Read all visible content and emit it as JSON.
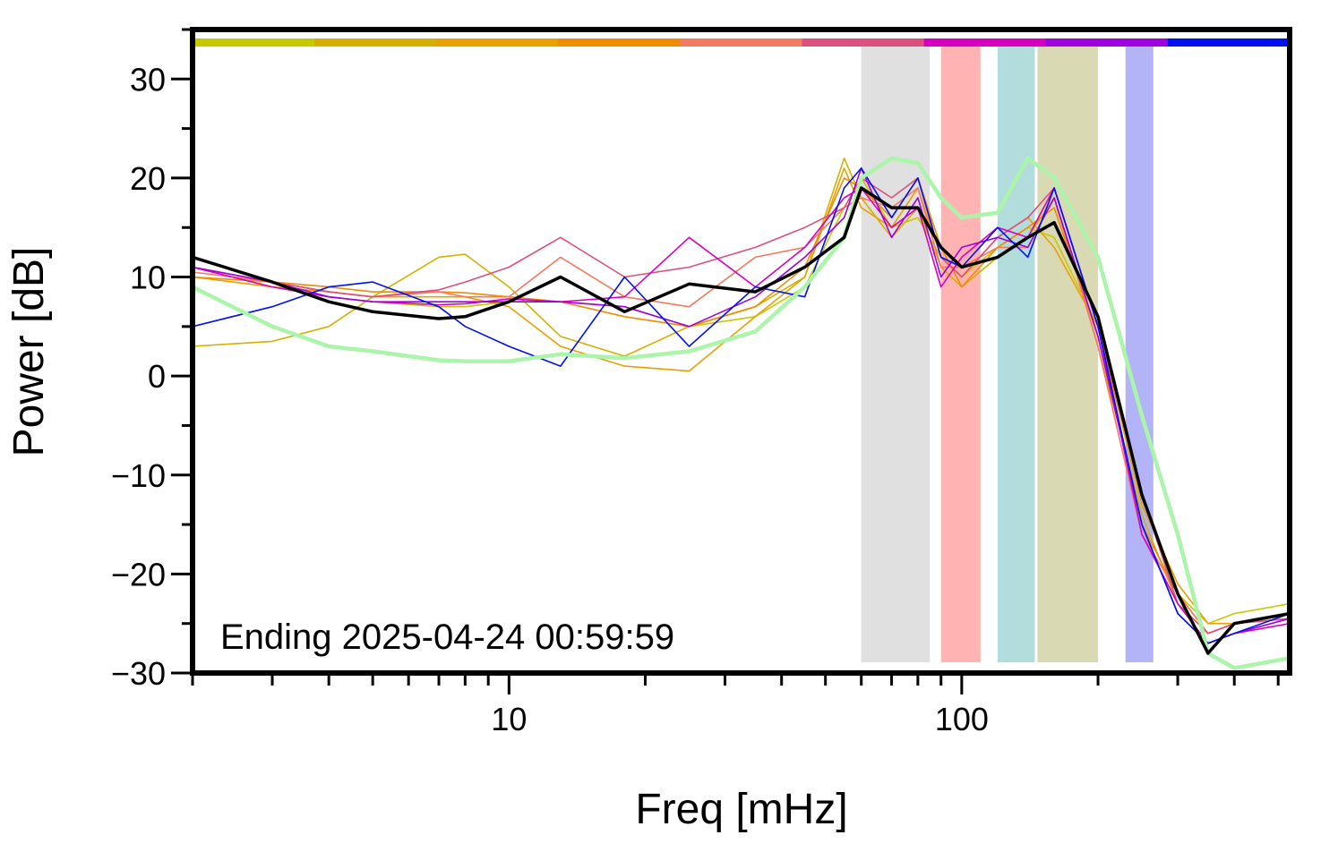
{
  "chart_data": {
    "type": "line",
    "xlabel": "Freq [mHz]",
    "ylabel": "Power [dB]",
    "annotation": "Ending 2025-04-24 00:59:59",
    "xscale": "log",
    "xlim": [
      2,
      530
    ],
    "ylim": [
      -30,
      35
    ],
    "xticks": [
      10,
      100
    ],
    "xminorticks": [
      2,
      3,
      4,
      5,
      6,
      7,
      8,
      9,
      20,
      30,
      40,
      50,
      60,
      70,
      80,
      90,
      200,
      300,
      400,
      500
    ],
    "yticks": [
      {
        "value": -30,
        "label": "−30"
      },
      {
        "value": -20,
        "label": "−20"
      },
      {
        "value": -10,
        "label": "−10"
      },
      0,
      10,
      20,
      30
    ],
    "yminorticks": [
      -25,
      -15,
      -5,
      5,
      15,
      25,
      35
    ],
    "bands": [
      {
        "x": [
          60,
          85
        ],
        "color": "#e0e0e0"
      },
      {
        "x": [
          90,
          110
        ],
        "color": "#ffb3b3"
      },
      {
        "x": [
          120,
          145
        ],
        "color": "#b3dcdc"
      },
      {
        "x": [
          147,
          200
        ],
        "color": "#d9d9b3"
      },
      {
        "x": [
          230,
          265
        ],
        "color": "#b3b3f8"
      }
    ],
    "x": [
      2,
      3,
      4,
      5,
      7,
      8,
      10,
      13,
      18,
      25,
      35,
      45,
      55,
      60,
      70,
      80,
      90,
      100,
      120,
      140,
      160,
      200,
      250,
      300,
      350,
      400,
      530
    ],
    "series": [
      {
        "color": "#c8c800",
        "values": [
          11,
          9,
          8,
          7.5,
          7,
          7,
          7.5,
          7.5,
          7,
          5,
          6,
          9,
          17,
          20,
          15,
          16,
          12,
          10,
          13,
          15,
          14,
          5,
          -12,
          -22,
          -25,
          -24,
          -23
        ]
      },
      {
        "color": "#d4b000",
        "values": [
          3,
          3.5,
          5,
          8,
          12,
          12.3,
          9,
          4,
          2,
          5,
          7,
          10,
          22,
          18,
          14,
          17,
          11,
          9,
          12,
          14,
          18,
          3,
          -14,
          -23,
          -26,
          -25,
          -24
        ]
      },
      {
        "color": "#e8a000",
        "values": [
          10,
          9,
          8.5,
          8,
          8,
          8,
          7,
          3,
          1,
          0.5,
          6,
          10,
          21,
          17,
          15,
          19,
          12,
          10,
          14,
          16,
          13,
          5,
          -13,
          -21,
          -25,
          -25,
          -24.5
        ]
      },
      {
        "color": "#f08c00",
        "values": [
          10,
          9.5,
          9,
          8.5,
          8.5,
          8.4,
          8,
          7.5,
          6,
          5,
          7,
          11,
          20,
          19,
          16,
          20,
          13,
          9,
          13,
          15,
          17,
          4,
          -15,
          -22,
          -26,
          -25,
          -24.5
        ]
      },
      {
        "color": "#f57860",
        "values": [
          10.5,
          9.5,
          8.5,
          8,
          8.5,
          8,
          8,
          12,
          8,
          7,
          12,
          13,
          17,
          18,
          17,
          19,
          11,
          11,
          13,
          13,
          18,
          3,
          -16,
          -22,
          -26,
          -25,
          -24
        ]
      },
      {
        "color": "#dc5080",
        "values": [
          11,
          9.5,
          8.5,
          8,
          8.7,
          9.5,
          11,
          14,
          10,
          11,
          13,
          15,
          17,
          20,
          18,
          20,
          12,
          10,
          14,
          16,
          19,
          5,
          -12,
          -23,
          -26,
          -25,
          -24.5
        ]
      },
      {
        "color": "#d800c0",
        "values": [
          11,
          9,
          8,
          7.5,
          7.2,
          7.3,
          7.8,
          7.5,
          8,
          14,
          9,
          13,
          18,
          19,
          15,
          17,
          9,
          12,
          15,
          14,
          19,
          5,
          -16,
          -23,
          -27,
          -26,
          -25
        ]
      },
      {
        "color": "#a000e0",
        "values": [
          11,
          9.5,
          8,
          7.5,
          7.5,
          7.5,
          7.5,
          7.5,
          7,
          5,
          8,
          12,
          16,
          21,
          14,
          18,
          10,
          13,
          14,
          13,
          18,
          4,
          -15,
          -24,
          -27,
          -26,
          -24.5
        ]
      },
      {
        "color": "#0010f0",
        "values": [
          5,
          7,
          9,
          9.5,
          7,
          5,
          3,
          1,
          10,
          3,
          9,
          8,
          19,
          21,
          16,
          20,
          12,
          11,
          15,
          12,
          19,
          5,
          -15,
          -24,
          -27,
          -26,
          -24
        ]
      },
      {
        "color": "#aaf5aa",
        "values": [
          9,
          5,
          3,
          2.5,
          1.6,
          1.5,
          1.5,
          2.2,
          1.8,
          2.5,
          4.5,
          9,
          14,
          20,
          22,
          21.5,
          18,
          16,
          16.5,
          22,
          20,
          12,
          -4,
          -16,
          -28,
          -29.5,
          -28.5
        ]
      },
      {
        "color": "#000000",
        "values": [
          12,
          9.5,
          7.5,
          6.5,
          5.8,
          6,
          7.5,
          10,
          6.5,
          9.3,
          8.5,
          11,
          14,
          19,
          17,
          17,
          13,
          11,
          12,
          14,
          15.5,
          6,
          -12,
          -22,
          -28,
          -25,
          -24
        ]
      }
    ]
  }
}
